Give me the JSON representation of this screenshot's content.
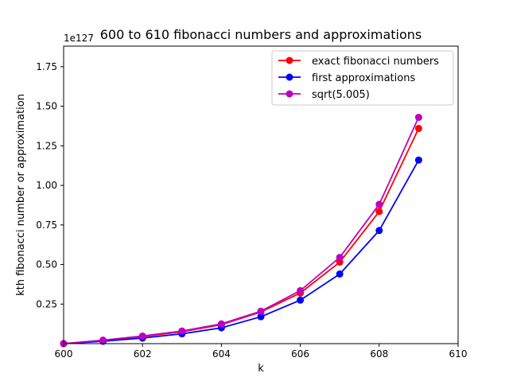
{
  "chart_data": {
    "type": "line",
    "title": "600 to 610 fibonacci numbers and approximations",
    "xlabel": "k",
    "ylabel": "kth fibonacci number or approximation",
    "y_offset_label": "1e127",
    "xlim": [
      600,
      610
    ],
    "ylim": [
      0.0,
      1.88
    ],
    "x_ticks": [
      600,
      602,
      604,
      606,
      608,
      610
    ],
    "y_ticks": [
      0.25,
      0.5,
      0.75,
      1.0,
      1.25,
      1.5,
      1.75
    ],
    "x_tick_labels": [
      "600",
      "602",
      "604",
      "606",
      "608",
      "610"
    ],
    "y_tick_labels": [
      "0.25",
      "0.50",
      "0.75",
      "1.00",
      "1.25",
      "1.50",
      "1.75"
    ],
    "grid": false,
    "legend_position": "top-right",
    "x": [
      600,
      601,
      602,
      603,
      604,
      605,
      606,
      607,
      608,
      609
    ],
    "series": [
      {
        "name": "exact fibonacci numbers",
        "color": "#ff0000",
        "values": [
          0.0,
          0.02,
          0.045,
          0.075,
          0.12,
          0.2,
          0.32,
          0.515,
          0.835,
          1.36
        ]
      },
      {
        "name": "first approximations",
        "color": "#0000ff",
        "values": [
          0.0,
          0.015,
          0.035,
          0.062,
          0.1,
          0.17,
          0.275,
          0.44,
          0.715,
          1.16
        ]
      },
      {
        "name": "sqrt(5.005)",
        "color": "#bf00bf",
        "values": [
          0.0,
          0.022,
          0.048,
          0.08,
          0.125,
          0.205,
          0.335,
          0.545,
          0.88,
          1.43
        ]
      }
    ]
  }
}
